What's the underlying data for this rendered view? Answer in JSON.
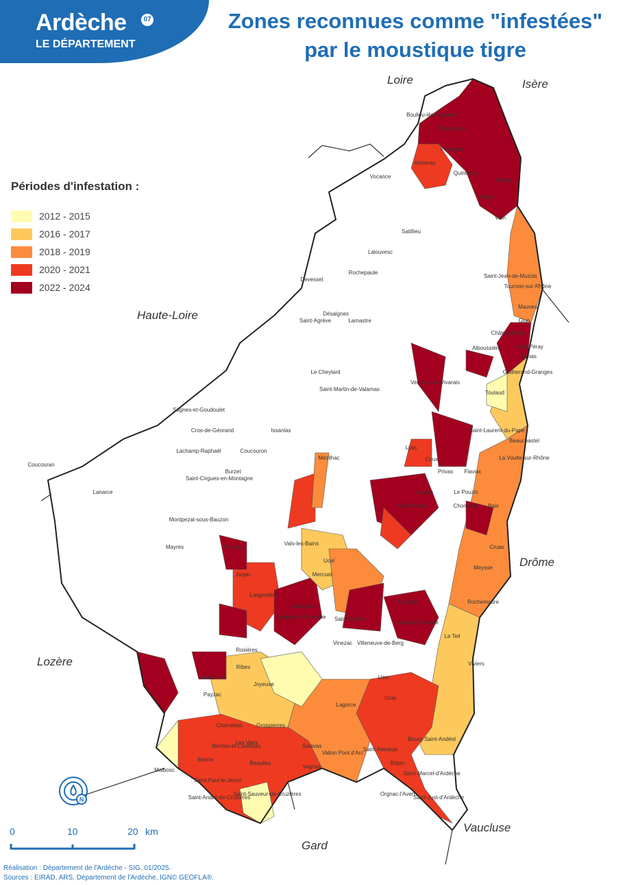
{
  "logo": {
    "name": "Ardèche",
    "superscript": "07",
    "subtitle": "LE DÉPARTEMENT"
  },
  "title": {
    "line1": "Zones reconnues comme \"infestées\"",
    "line2": "par le moustique tigre"
  },
  "legend": {
    "title": "Périodes d'infestation :",
    "items": [
      {
        "label": "2012 - 2015",
        "color": "#fffcb0"
      },
      {
        "label": "2016 - 2017",
        "color": "#fdc95c"
      },
      {
        "label": "2018 - 2019",
        "color": "#fc8c3c"
      },
      {
        "label": "2020 - 2021",
        "color": "#ee3a20"
      },
      {
        "label": "2022 - 2024",
        "color": "#a3001f"
      }
    ]
  },
  "neighbors": [
    "Loire",
    "Isère",
    "Haute-Loire",
    "Drôme",
    "Lozère",
    "Vaucluse",
    "Gard"
  ],
  "communes": [
    "Annonay",
    "Sarras",
    "Tournon-sur-Rhône",
    "Saint-Péray",
    "Guilherand-Granges",
    "Toulaud",
    "Privas",
    "Le Pouzin",
    "Baix",
    "Cruas",
    "Meysse",
    "Rochemaure",
    "Le Teil",
    "Viviers",
    "Aubenas",
    "Vals-les-Bains",
    "Thueyts",
    "Jaujac",
    "Largentière",
    "Joyeuse",
    "Les Vans",
    "Banne",
    "Berrias-et-Casteljau",
    "Lagorce",
    "Vallon Pont d'Arc",
    "Gras",
    "Saint-Remèze",
    "Bourg-Saint-Andéol",
    "Saint-Marcel-d'Ardèche",
    "Saint-Just-d'Ardèche",
    "Bidon",
    "Lamastre",
    "Désaignes",
    "Vernoux-en-Vivarais",
    "Le Cheylard",
    "Saint-Agrève",
    "Coucouran",
    "Lanarce",
    "Montpezat-sous-Bauzon",
    "Villeneuve-de-Berg",
    "Alba-la-Romaine",
    "Lablachère",
    "Chandolas",
    "Grospierres",
    "Salavas",
    "Vagnas",
    "Beaulieu",
    "Saint-Paul-le-Jeune",
    "Saint-André-de-Cruzières",
    "Saint-Sauveur-de-Cruzières",
    "Orgnac-l'Aven",
    "Cornas",
    "Chomérac",
    "Boulieu-lès-Annonay",
    "Davézieux",
    "Peaugres",
    "Quintenas",
    "Ardoix",
    "Vion",
    "Saint-Jean-de-Muzols",
    "Mauves",
    "Glun",
    "Châteaubourg",
    "Alboussière",
    "La Voulte-sur-Rhône",
    "Beauchastel",
    "Saint-Laurent-du-Pape",
    "Flaviac",
    "Coux",
    "Veyras",
    "Saint-Priest",
    "Lyas",
    "Mercuel",
    "Ucel",
    "Labégude",
    "Lalevade-d'Ardèche",
    "Saint-Sernin",
    "Vinezac",
    "Uzer",
    "Rosières",
    "Payzac",
    "Ribes",
    "Malbosc",
    "Mayres",
    "Burzet",
    "Lachamp-Raphaël",
    "Mézilhac",
    "Saint-Martin-de-Valamas",
    "Satillieu",
    "Vocance",
    "Lalouvesc",
    "Rochepaule",
    "Devesset",
    "Cros-de-Géorand",
    "Issanlas",
    "Coucouron",
    "Sagnes-et-Goudoulet",
    "Saint-Cirgues-en-Montagne"
  ],
  "compass": {
    "letter": "N"
  },
  "scale": {
    "ticks": [
      "0",
      "10",
      "20"
    ],
    "unit": "km"
  },
  "footer": {
    "line1": "Réalisation : Département de l'Ardèche - SIG, 01/2025.",
    "line2": "Sources : EIRAD, ARS, Département de l'Ardèche, IGN© GEOFLA®."
  }
}
